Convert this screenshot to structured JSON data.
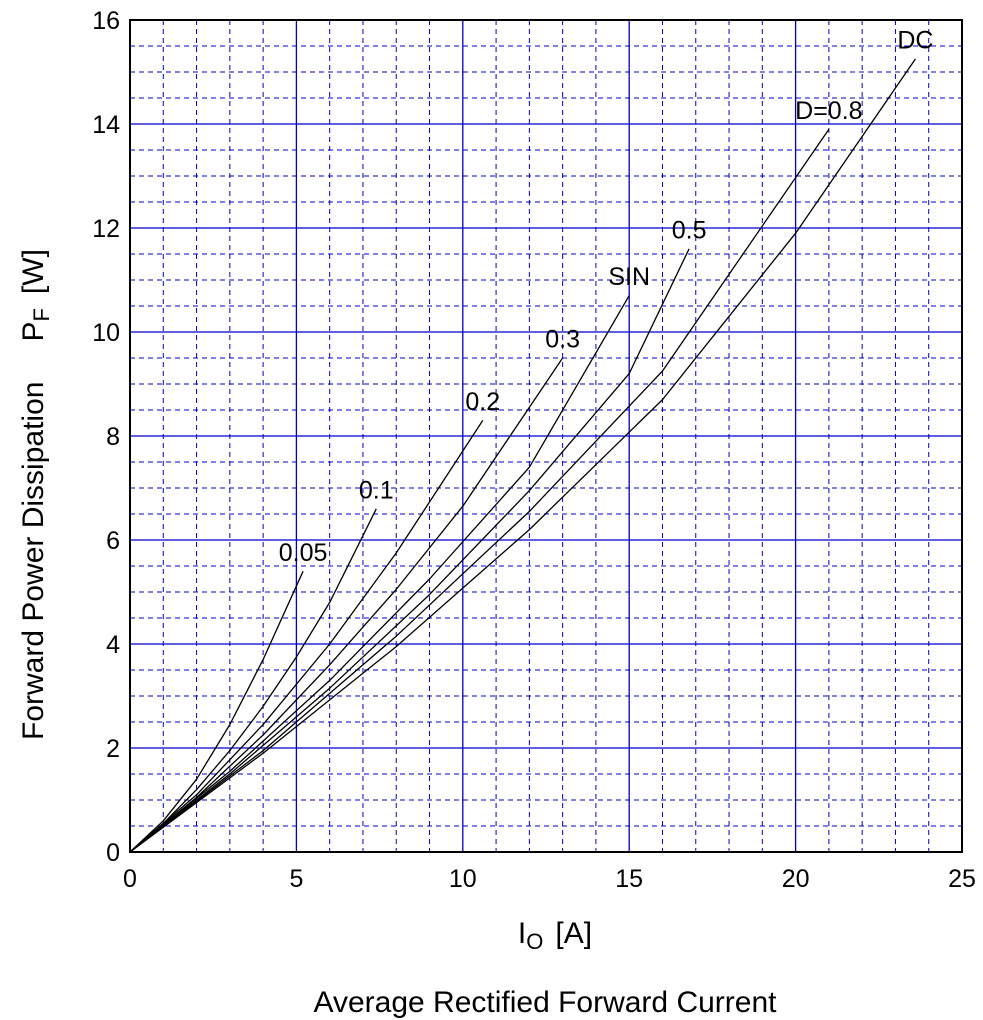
{
  "chart_data": {
    "type": "line",
    "title": "",
    "xlabel": {
      "symbol": "I",
      "subscript": "O",
      "unit": "[A]",
      "caption": "Average Rectified Forward Current"
    },
    "ylabel": {
      "caption": "Forward Power Dissipation",
      "symbol": "P",
      "subscript": "F",
      "unit": "[W]"
    },
    "xlim": [
      0,
      25
    ],
    "ylim": [
      0,
      16
    ],
    "xticks": [
      0,
      5,
      10,
      15,
      20,
      25
    ],
    "yticks": [
      0,
      2,
      4,
      6,
      8,
      10,
      12,
      14,
      16
    ],
    "grid": {
      "major": true,
      "minor": true,
      "major_color": "#0000cc",
      "minor_color": "#0000cc",
      "minor_style": "dashed"
    },
    "line_color": "#000000",
    "series": [
      {
        "name": "0.05",
        "x": [
          0,
          1.0,
          2.0,
          3.0,
          4.0,
          5.2
        ],
        "y": [
          0,
          0.6,
          1.4,
          2.45,
          3.7,
          5.4
        ]
      },
      {
        "name": "0.1",
        "x": [
          0,
          1.0,
          2.0,
          3.0,
          4.0,
          5.0,
          6.0,
          7.4
        ],
        "y": [
          0,
          0.55,
          1.2,
          1.95,
          2.8,
          3.75,
          4.8,
          6.6
        ]
      },
      {
        "name": "0.2",
        "x": [
          0,
          2.0,
          4.0,
          6.0,
          8.0,
          10.6
        ],
        "y": [
          0,
          1.1,
          2.45,
          4.0,
          5.75,
          8.3
        ]
      },
      {
        "name": "0.3",
        "x": [
          0,
          2.0,
          4.0,
          6.0,
          8.0,
          10.0,
          13.0
        ],
        "y": [
          0,
          1.05,
          2.25,
          3.6,
          5.05,
          6.65,
          9.5
        ]
      },
      {
        "name": "SIN",
        "x": [
          0,
          3.0,
          6.0,
          9.0,
          12.0,
          15.0
        ],
        "y": [
          0,
          1.55,
          3.3,
          5.25,
          7.4,
          10.7
        ]
      },
      {
        "name": "0.5",
        "x": [
          0,
          3.0,
          6.0,
          9.0,
          12.0,
          15.0,
          16.8
        ],
        "y": [
          0,
          1.5,
          3.15,
          4.95,
          6.95,
          9.2,
          11.6
        ]
      },
      {
        "name": "D=0.8",
        "x": [
          0,
          4.0,
          8.0,
          12.0,
          16.0,
          21.0
        ],
        "y": [
          0,
          1.95,
          4.15,
          6.55,
          9.25,
          13.9
        ]
      },
      {
        "name": "DC",
        "x": [
          0,
          4.0,
          8.0,
          12.0,
          16.0,
          20.0,
          23.6
        ],
        "y": [
          0,
          1.9,
          3.95,
          6.2,
          8.7,
          11.9,
          15.25
        ]
      }
    ],
    "labels": [
      {
        "text": "0.05",
        "x": 5.2,
        "y": 5.6
      },
      {
        "text": "0.1",
        "x": 7.4,
        "y": 6.8
      },
      {
        "text": "0.2",
        "x": 10.6,
        "y": 8.5
      },
      {
        "text": "0.3",
        "x": 13.0,
        "y": 9.7
      },
      {
        "text": "SIN",
        "x": 15.0,
        "y": 10.9
      },
      {
        "text": "0.5",
        "x": 16.8,
        "y": 11.8
      },
      {
        "text": "D=0.8",
        "x": 21.0,
        "y": 14.1
      },
      {
        "text": "DC",
        "x": 23.6,
        "y": 15.45
      }
    ]
  }
}
